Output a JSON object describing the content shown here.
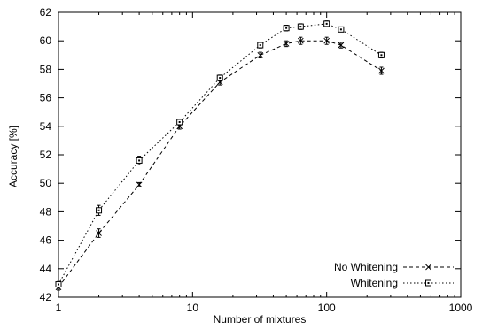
{
  "chart_data": {
    "type": "line",
    "xlabel": "Number of mixtures",
    "ylabel": "Accuracy [%]",
    "xscale": "log",
    "xlim": [
      1,
      1000
    ],
    "ylim": [
      42,
      62
    ],
    "xticks": [
      1,
      10,
      100,
      1000
    ],
    "xtick_labels": [
      "1",
      "10",
      "100",
      "1000"
    ],
    "yticks": [
      42,
      44,
      46,
      48,
      50,
      52,
      54,
      56,
      58,
      60,
      62
    ],
    "ytick_labels": [
      "42",
      "44",
      "46",
      "48",
      "50",
      "52",
      "54",
      "56",
      "58",
      "60",
      "62"
    ],
    "grid": false,
    "legend_position": "bottom-right",
    "series": [
      {
        "name": "No Whitening",
        "color": "#000000",
        "line_style": "dashed",
        "marker": "x",
        "x": [
          1,
          2,
          4,
          8,
          16,
          32,
          50,
          64,
          100,
          128,
          256
        ],
        "values": [
          42.7,
          46.5,
          49.9,
          54.0,
          57.1,
          59.0,
          59.8,
          60.0,
          60.0,
          59.7,
          57.9
        ],
        "errors": [
          0.2,
          0.3,
          0.15,
          0.2,
          0.2,
          0.2,
          0.2,
          0.25,
          0.25,
          0.2,
          0.25
        ]
      },
      {
        "name": "Whitening",
        "color": "#000000",
        "line_style": "dotted",
        "marker": "square",
        "x": [
          1,
          2,
          4,
          8,
          16,
          32,
          50,
          64,
          100,
          128,
          256
        ],
        "values": [
          42.9,
          48.1,
          51.6,
          54.3,
          57.4,
          59.7,
          60.9,
          61.0,
          61.2,
          60.8,
          59.0
        ],
        "errors": [
          0.2,
          0.35,
          0.3,
          0.2,
          0.2,
          0.2,
          0.2,
          0.2,
          0.2,
          0.15,
          0.2
        ]
      }
    ]
  }
}
